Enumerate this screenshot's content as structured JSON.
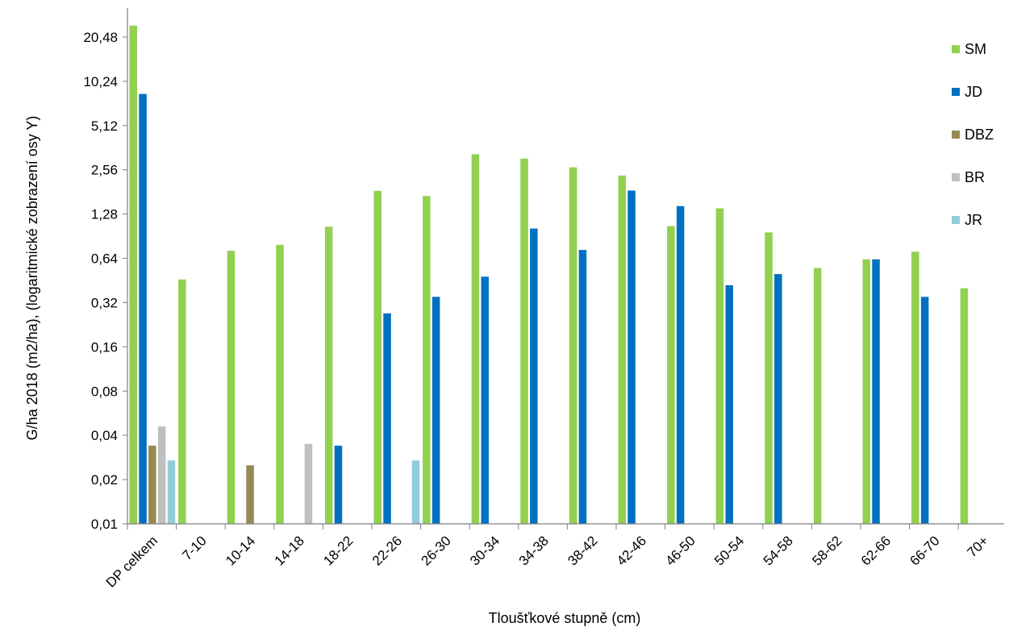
{
  "chart_data": {
    "type": "bar",
    "title": "",
    "xlabel": "Tloušťkové stupně (cm)",
    "ylabel": "G/ha 2018 (m2/ha), (logaritmické zobrazení osy Y)",
    "yscale": "log2",
    "ylim": [
      0.01,
      30
    ],
    "yticks": [
      "0,01",
      "0,02",
      "0,04",
      "0,08",
      "0,16",
      "0,32",
      "0,64",
      "1,28",
      "2,56",
      "5,12",
      "10,24",
      "20,48"
    ],
    "ytick_values": [
      0.01,
      0.02,
      0.04,
      0.08,
      0.16,
      0.32,
      0.64,
      1.28,
      2.56,
      5.12,
      10.24,
      20.48
    ],
    "grid": false,
    "legend_position": "right",
    "categories": [
      "DP celkem",
      "7-10",
      "10-14",
      "14-18",
      "18-22",
      "22-26",
      "26-30",
      "30-34",
      "34-38",
      "38-42",
      "42-46",
      "46-50",
      "50-54",
      "54-58",
      "58-62",
      "62-66",
      "66-70",
      "70+"
    ],
    "series": [
      {
        "name": "SM",
        "color": "#92D050",
        "values": [
          24.5,
          0.46,
          0.72,
          0.79,
          1.05,
          1.84,
          1.7,
          3.27,
          3.05,
          2.66,
          2.34,
          1.06,
          1.4,
          0.96,
          0.55,
          0.63,
          0.71,
          0.4
        ]
      },
      {
        "name": "JD",
        "color": "#0070C0",
        "values": [
          8.4,
          null,
          null,
          null,
          0.034,
          0.27,
          0.35,
          0.48,
          1.02,
          0.73,
          1.85,
          1.45,
          0.42,
          0.5,
          null,
          0.63,
          0.35,
          null
        ]
      },
      {
        "name": "DBZ",
        "color": "#948A54",
        "values": [
          0.034,
          null,
          0.025,
          null,
          null,
          null,
          null,
          null,
          null,
          null,
          null,
          null,
          null,
          null,
          null,
          null,
          null,
          null
        ]
      },
      {
        "name": "BR",
        "color": "#BFBFBF",
        "values": [
          0.046,
          null,
          null,
          0.035,
          null,
          null,
          null,
          null,
          null,
          null,
          null,
          null,
          null,
          null,
          null,
          null,
          null,
          null
        ]
      },
      {
        "name": "JR",
        "color": "#92CDDC",
        "values": [
          0.027,
          null,
          null,
          null,
          null,
          0.027,
          null,
          null,
          null,
          null,
          null,
          null,
          null,
          null,
          null,
          null,
          null,
          null
        ]
      }
    ]
  }
}
